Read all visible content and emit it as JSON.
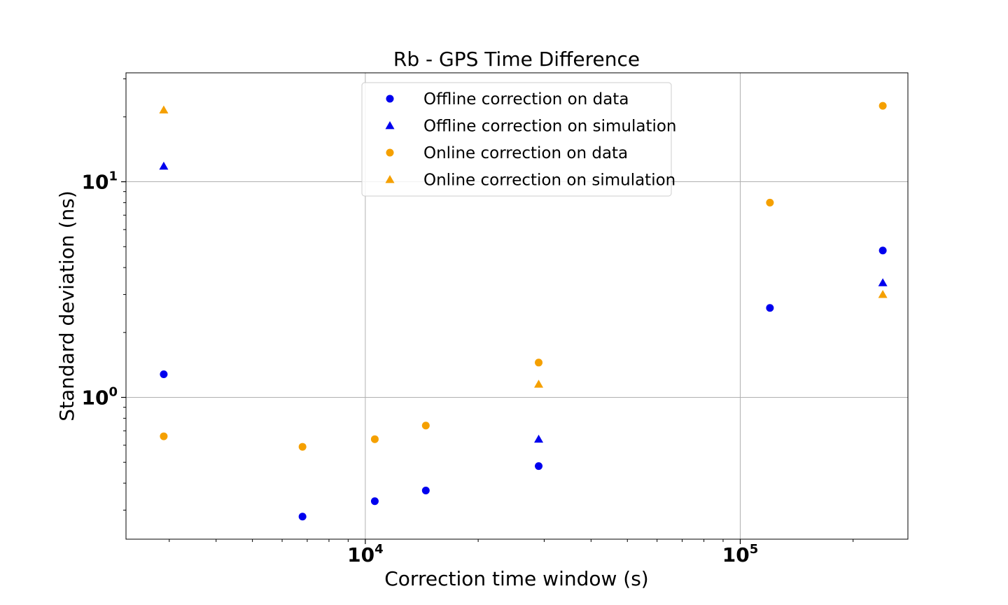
{
  "chart_data": {
    "type": "scatter",
    "title": "Rb - GPS Time Difference",
    "xlabel": "Correction time window (s)",
    "ylabel": "Standard deviation (ns)",
    "xscale": "log",
    "yscale": "log",
    "xlim": [
      2300,
      280000
    ],
    "ylim": [
      0.22,
      32
    ],
    "grid": true,
    "legend_position": "top-center",
    "x_ticks": [
      {
        "value": 10000,
        "base": "10",
        "exp": "4"
      },
      {
        "value": 100000,
        "base": "10",
        "exp": "5"
      }
    ],
    "y_ticks": [
      {
        "value": 1,
        "base": "10",
        "exp": "0"
      },
      {
        "value": 10,
        "base": "10",
        "exp": "1"
      }
    ],
    "series": [
      {
        "name": "Offline correction on data",
        "marker": "circle",
        "color": "#0000ee",
        "points": [
          {
            "x": 2900,
            "y": 1.28
          },
          {
            "x": 6800,
            "y": 0.28
          },
          {
            "x": 10600,
            "y": 0.33
          },
          {
            "x": 14500,
            "y": 0.37
          },
          {
            "x": 29000,
            "y": 0.48
          },
          {
            "x": 120000,
            "y": 2.6
          },
          {
            "x": 240000,
            "y": 4.8
          }
        ]
      },
      {
        "name": "Offline correction on simulation",
        "marker": "triangle",
        "color": "#0000ee",
        "points": [
          {
            "x": 2900,
            "y": 11.8
          },
          {
            "x": 29000,
            "y": 0.64
          },
          {
            "x": 240000,
            "y": 3.4
          }
        ]
      },
      {
        "name": "Online correction on data",
        "marker": "circle",
        "color": "#f5a000",
        "points": [
          {
            "x": 2900,
            "y": 0.66
          },
          {
            "x": 6800,
            "y": 0.59
          },
          {
            "x": 10600,
            "y": 0.64
          },
          {
            "x": 14500,
            "y": 0.74
          },
          {
            "x": 29000,
            "y": 1.45
          },
          {
            "x": 120000,
            "y": 8.0
          },
          {
            "x": 240000,
            "y": 22.5
          }
        ]
      },
      {
        "name": "Online correction on simulation",
        "marker": "triangle",
        "color": "#f5a000",
        "points": [
          {
            "x": 2900,
            "y": 21.5
          },
          {
            "x": 29000,
            "y": 1.15
          },
          {
            "x": 240000,
            "y": 3.0
          }
        ]
      }
    ]
  }
}
